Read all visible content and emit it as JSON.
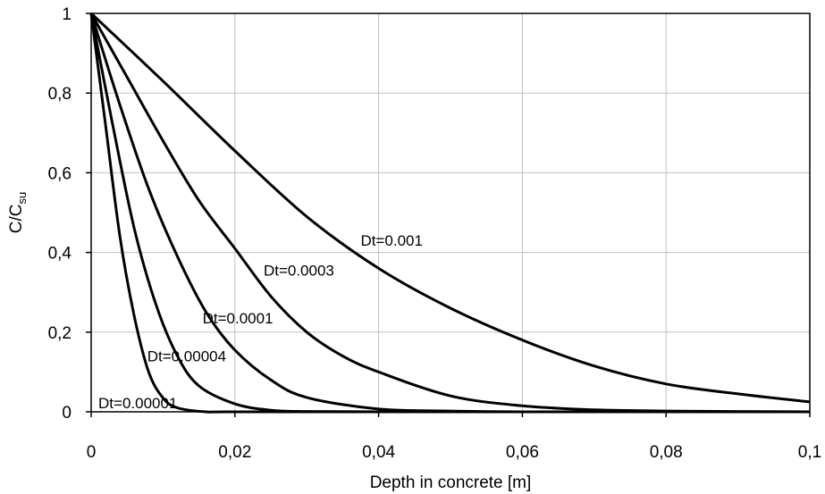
{
  "chart_data": {
    "type": "line",
    "xlabel": "Depth in concrete [m]",
    "ylabel_main": "C/C",
    "ylabel_sub": "su",
    "xlim": [
      0,
      0.1
    ],
    "ylim": [
      0,
      1
    ],
    "grid": true,
    "x_ticks": [
      {
        "value": 0,
        "label": "0"
      },
      {
        "value": 0.02,
        "label": "0,02"
      },
      {
        "value": 0.04,
        "label": "0,04"
      },
      {
        "value": 0.06,
        "label": "0,06"
      },
      {
        "value": 0.08,
        "label": "0,08"
      },
      {
        "value": 0.1,
        "label": "0,1"
      }
    ],
    "y_ticks": [
      {
        "value": 0,
        "label": "0"
      },
      {
        "value": 0.2,
        "label": "0,2"
      },
      {
        "value": 0.4,
        "label": "0,4"
      },
      {
        "value": 0.6,
        "label": "0,6"
      },
      {
        "value": 0.8,
        "label": "0,8"
      },
      {
        "value": 1,
        "label": "1"
      }
    ],
    "series": [
      {
        "name": "Dt=0.001",
        "x": [
          0,
          0.01,
          0.02,
          0.03,
          0.04,
          0.05,
          0.06,
          0.07,
          0.08,
          0.09,
          0.1
        ],
        "y": [
          1,
          0.83,
          0.655,
          0.49,
          0.36,
          0.26,
          0.18,
          0.115,
          0.07,
          0.045,
          0.025
        ],
        "label_at": [
          0.0375,
          0.43
        ]
      },
      {
        "name": "Dt=0.0003",
        "x": [
          0,
          0.005,
          0.01,
          0.015,
          0.02,
          0.025,
          0.03,
          0.035,
          0.04,
          0.05,
          0.06,
          0.07,
          0.08,
          0.1
        ],
        "y": [
          1,
          0.84,
          0.68,
          0.53,
          0.41,
          0.29,
          0.2,
          0.14,
          0.1,
          0.04,
          0.015,
          0.005,
          0.002,
          0
        ],
        "label_at": [
          0.024,
          0.355
        ]
      },
      {
        "name": "Dt=0.0001",
        "x": [
          0,
          0.004,
          0.008,
          0.012,
          0.016,
          0.02,
          0.025,
          0.03,
          0.04,
          0.05,
          0.06,
          0.08,
          0.1
        ],
        "y": [
          1,
          0.77,
          0.56,
          0.39,
          0.25,
          0.155,
          0.08,
          0.036,
          0.007,
          0.002,
          0,
          0,
          0
        ],
        "label_at": [
          0.0155,
          0.235
        ]
      },
      {
        "name": "Dt=0.00004",
        "x": [
          0,
          0.003,
          0.006,
          0.009,
          0.012,
          0.015,
          0.02,
          0.025,
          0.03,
          0.04,
          0.06,
          0.1
        ],
        "y": [
          1,
          0.72,
          0.46,
          0.27,
          0.14,
          0.065,
          0.02,
          0.004,
          0.001,
          0,
          0,
          0
        ],
        "label_at": [
          0.0078,
          0.14
        ]
      },
      {
        "name": "Dt=0.00001",
        "x": [
          0,
          0.002,
          0.004,
          0.006,
          0.008,
          0.01,
          0.012,
          0.016,
          0.02,
          0.05,
          0.1
        ],
        "y": [
          1,
          0.72,
          0.44,
          0.24,
          0.1,
          0.035,
          0.01,
          0,
          0,
          0,
          0
        ],
        "label_at": [
          0.001,
          0.022
        ]
      }
    ]
  }
}
